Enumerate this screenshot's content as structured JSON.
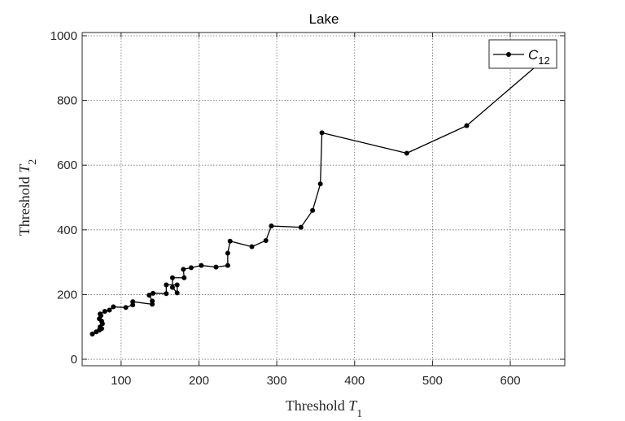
{
  "chart_data": {
    "type": "line",
    "title": "Lake",
    "xlabel": {
      "text": "Threshold ",
      "var": "T",
      "sub": "1"
    },
    "ylabel": {
      "text": "Threshold ",
      "var": "T",
      "sub": "2"
    },
    "xlim": [
      50,
      670
    ],
    "ylim": [
      -20,
      1010
    ],
    "xticks": [
      100,
      200,
      300,
      400,
      500,
      600
    ],
    "yticks": [
      0,
      200,
      400,
      600,
      800,
      1000
    ],
    "grid": true,
    "legend": {
      "position": "top-right",
      "entries": [
        {
          "var": "C",
          "sub": "12"
        }
      ]
    },
    "series": [
      {
        "color": "#000000",
        "marker": "dot",
        "points": [
          [
            63,
            78
          ],
          [
            68,
            85
          ],
          [
            72,
            90
          ],
          [
            75,
            95
          ],
          [
            73,
            100
          ],
          [
            76,
            110
          ],
          [
            75,
            118
          ],
          [
            72,
            125
          ],
          [
            74,
            135
          ],
          [
            73,
            140
          ],
          [
            79,
            148
          ],
          [
            85,
            152
          ],
          [
            90,
            162
          ],
          [
            106,
            160
          ],
          [
            115,
            168
          ],
          [
            115,
            178
          ],
          [
            140,
            170
          ],
          [
            140,
            180
          ],
          [
            136,
            198
          ],
          [
            141,
            204
          ],
          [
            158,
            203
          ],
          [
            158,
            230
          ],
          [
            172,
            230
          ],
          [
            172,
            205
          ],
          [
            166,
            222
          ],
          [
            166,
            252
          ],
          [
            181,
            252
          ],
          [
            180,
            278
          ],
          [
            190,
            283
          ],
          [
            203,
            290
          ],
          [
            222,
            285
          ],
          [
            237,
            290
          ],
          [
            237,
            328
          ],
          [
            240,
            365
          ],
          [
            268,
            348
          ],
          [
            286,
            367
          ],
          [
            293,
            412
          ],
          [
            331,
            408
          ],
          [
            346,
            460
          ],
          [
            356,
            542
          ],
          [
            358,
            700
          ],
          [
            467,
            637
          ],
          [
            544,
            722
          ],
          [
            640,
            920
          ]
        ]
      }
    ]
  }
}
